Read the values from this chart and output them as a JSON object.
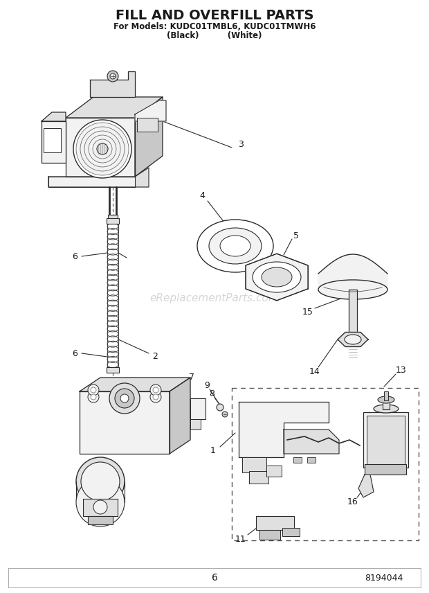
{
  "title": "FILL AND OVERFILL PARTS",
  "subtitle1": "For Models: KUDC01TMBL6, KUDC01TMWH6",
  "subtitle2": "(Black)          (White)",
  "watermark": "eReplacementParts.com",
  "page_number": "6",
  "doc_number": "8194044",
  "bg_color": "#ffffff",
  "text_color": "#1a1a1a",
  "line_color": "#2a2a2a",
  "light_fill": "#f2f2f2",
  "mid_fill": "#e0e0e0",
  "dark_fill": "#c8c8c8"
}
